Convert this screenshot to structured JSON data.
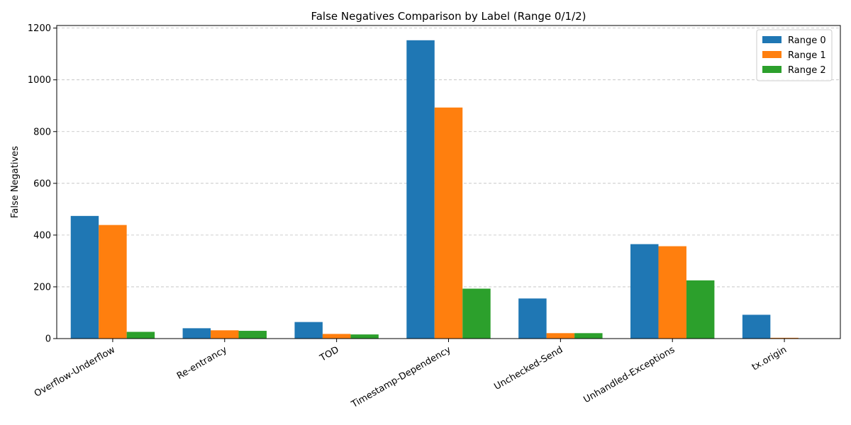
{
  "chart_data": {
    "type": "bar",
    "title": "False Negatives Comparison by Label (Range 0/1/2)",
    "xlabel": "",
    "ylabel": "False Negatives",
    "categories": [
      "Overflow-Underflow",
      "Re-entrancy",
      "TOD",
      "Timestamp-Dependency",
      "Unchecked-Send",
      "Unhandled-Exceptions",
      "tx.origin"
    ],
    "series": [
      {
        "name": "Range 0",
        "color": "#1f77b4",
        "values": [
          474,
          40,
          64,
          1153,
          155,
          365,
          92
        ]
      },
      {
        "name": "Range 1",
        "color": "#ff7f0e",
        "values": [
          439,
          32,
          18,
          893,
          21,
          357,
          3
        ]
      },
      {
        "name": "Range 2",
        "color": "#2ca02c",
        "values": [
          26,
          30,
          16,
          193,
          21,
          225,
          0
        ]
      }
    ],
    "ylim": [
      0,
      1210
    ],
    "yticks": [
      0,
      200,
      400,
      600,
      800,
      1000,
      1200
    ],
    "grid": "y dashed",
    "legend_position": "top-right"
  }
}
